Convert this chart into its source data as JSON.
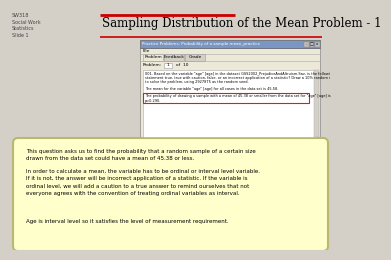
{
  "title": "Sampling Distribution of the Mean Problem - 1",
  "slide_label": "SW318\nSocial Work\nStatistics\nSlide 1",
  "bg_color": "#d4d0c8",
  "title_color": "#000000",
  "red_line_color": "#cc0000",
  "window_title": "Practice Problems: Probability of a sample mean_practice",
  "window_header_bg": "#7a96c2",
  "tabs": [
    "Problem",
    "Feedback",
    "Grade"
  ],
  "callout_bg": "#ffffcc",
  "callout_border": "#b8b870",
  "callout_text_1": "This question asks us to find the probability that a random sample of a certain size\ndrawn from the data set could have a mean of 45.38 or less.",
  "callout_text_2": "In order to calculate a mean, the variable has to be ordinal or interval level variable.\nIf it is not, the answer will be incorrect application of a statistic. If the variable is\nordinal level, we will add a caution to a true answer to remind ourselves that not\neveryone agrees with the convention of treating ordinal variables as interval.",
  "callout_text_3": "Age is interval level so it satisfies the level of measurement requirement.",
  "prob_line1": "001. Based on the variable \"age\" [age] in the dataset GSS2002_PrejudiceAndAltruism.Sav, is the following",
  "prob_line2": "statement true, true with caution, false, or an incorrect application of a statistic? Draw a 10% random sample",
  "prob_line3": "to solve the problem, using 2927875 as the random seed.",
  "prob_line4": "The mean for the variable \"age\" [age] for all cases in the data set is 45.58.",
  "prob_line5": "The probability of drawing a sample with a mean of 45.38 or smaller from the data set for \"age\" [age] is",
  "prob_line6": "p=0.290."
}
